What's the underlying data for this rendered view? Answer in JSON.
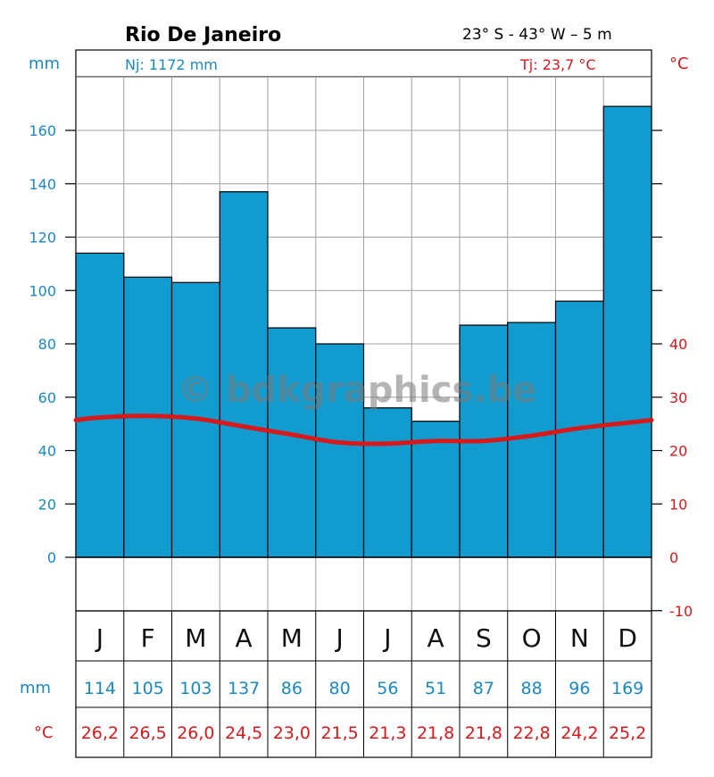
{
  "header": {
    "title": "Rio De Janeiro",
    "coordinates": "23° S - 43° W – 5 m",
    "precip_summary": "Nj: 1172 mm",
    "temp_summary": "Tj: 23,7 °C",
    "precip_unit": "mm",
    "temp_unit": "°C"
  },
  "table": {
    "precip_row_label": "mm",
    "temp_row_label": "°C",
    "precip_texts": [
      "114",
      "105",
      "103",
      "137",
      "86",
      "80",
      "56",
      "51",
      "87",
      "88",
      "96",
      "169"
    ],
    "temp_texts": [
      "26,2",
      "26,5",
      "26,0",
      "24,5",
      "23,0",
      "21,5",
      "21,3",
      "21,8",
      "21,8",
      "22,8",
      "24,2",
      "25,2"
    ]
  },
  "watermark": "© bdkgraphics.be",
  "colors": {
    "bar": "#119bcf",
    "temp_line": "#d7191c",
    "precip_text": "#1b88c0",
    "temp_text": "#d7191c",
    "grid": "#a0a0a0"
  },
  "chart_data": {
    "type": "bar",
    "categories": [
      "J",
      "F",
      "M",
      "A",
      "M",
      "J",
      "J",
      "A",
      "S",
      "O",
      "N",
      "D"
    ],
    "series": [
      {
        "values": [
          114,
          105,
          103,
          137,
          86,
          80,
          56,
          51,
          87,
          88,
          96,
          169
        ]
      },
      {
        "type": "line",
        "values": [
          26.2,
          26.5,
          26.0,
          24.5,
          23.0,
          21.5,
          21.3,
          21.8,
          21.8,
          22.8,
          24.2,
          25.2
        ]
      }
    ],
    "ylim": [
      0,
      180
    ],
    "y_ticks": [
      0,
      20,
      40,
      60,
      80,
      100,
      120,
      140,
      160
    ],
    "y2lim": [
      -10,
      50
    ],
    "y2_ticks": [
      -10,
      0,
      10,
      20,
      30,
      40
    ],
    "grid": true
  }
}
